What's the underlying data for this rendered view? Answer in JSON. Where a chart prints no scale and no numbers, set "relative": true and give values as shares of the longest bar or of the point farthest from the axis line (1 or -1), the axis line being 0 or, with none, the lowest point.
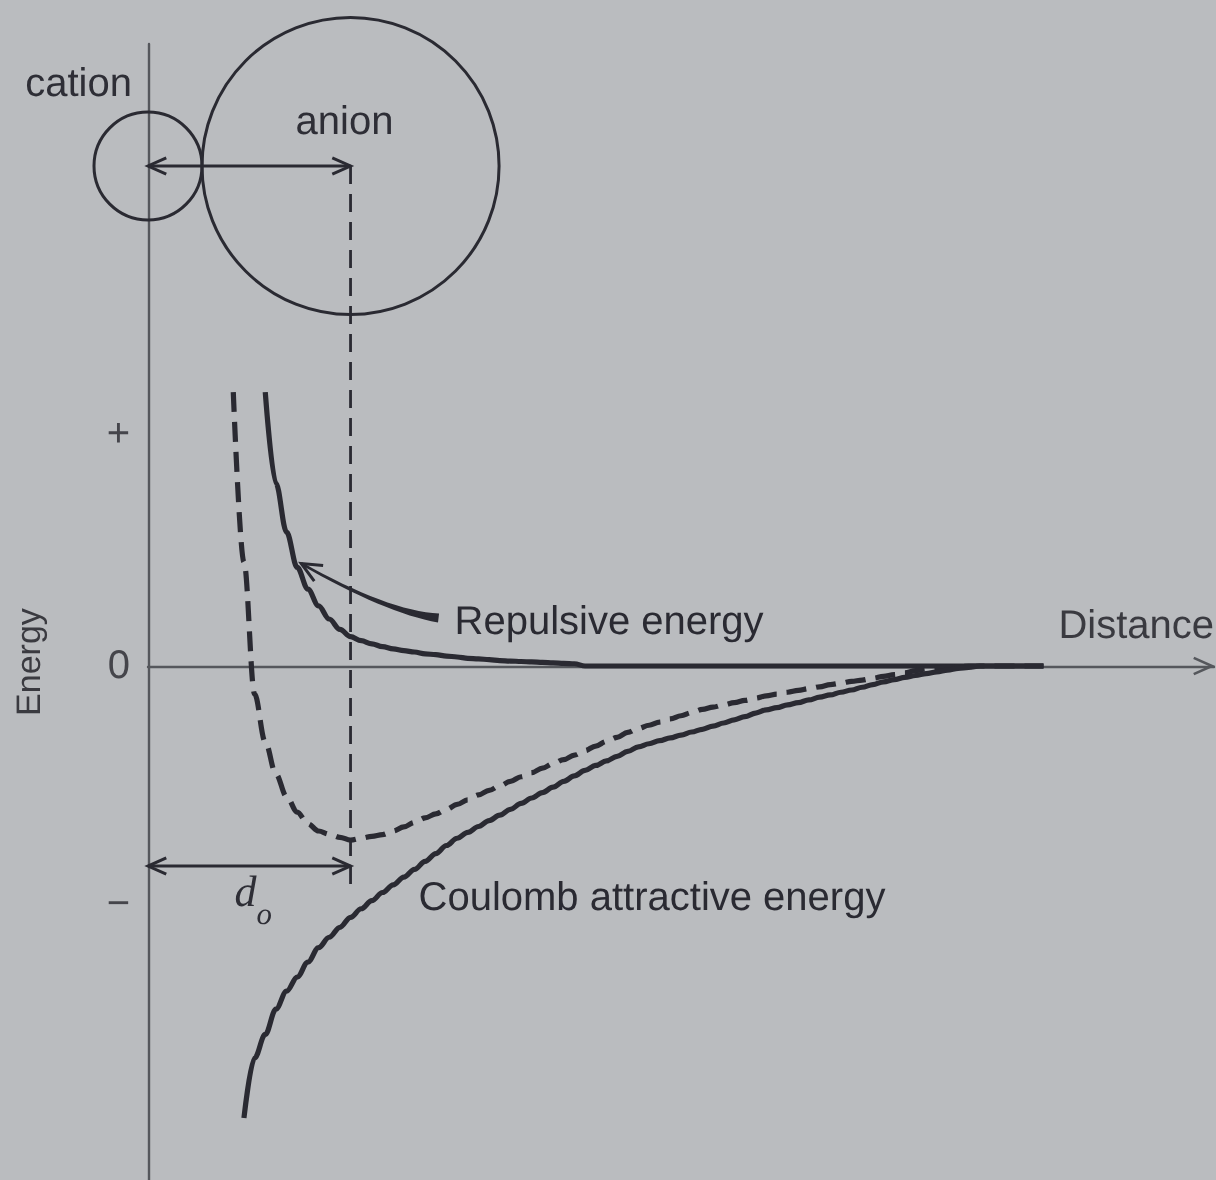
{
  "chart_data": {
    "type": "line",
    "xlabel": "Distance",
    "ylabel": "Energy",
    "relative": true,
    "marker": "none",
    "categories": [
      null,
      null,
      null,
      null,
      null,
      null,
      null,
      null,
      null,
      null,
      null,
      null,
      null,
      null,
      null,
      null,
      null,
      null,
      null,
      null,
      null,
      null,
      null,
      null,
      null,
      null,
      null,
      null,
      null,
      null,
      null,
      null,
      null,
      null,
      null,
      null,
      null,
      null,
      null,
      null,
      null,
      null,
      null,
      null,
      null,
      null,
      null,
      null,
      null,
      null,
      null,
      null,
      null,
      null,
      null,
      null,
      null,
      null,
      null,
      null,
      null,
      null,
      null,
      null,
      null,
      null,
      null,
      null,
      null,
      null,
      null,
      null,
      null,
      null,
      null,
      null,
      null,
      null,
      null,
      null,
      null,
      null,
      null,
      null,
      null,
      null,
      null,
      null,
      null,
      null,
      null,
      null,
      null,
      null,
      null,
      null,
      null,
      null,
      null,
      null,
      null
    ],
    "series": [
      {
        "name": "Repulsive energy",
        "color": "#2a2a32",
        "line_style": "solid",
        "values": [
          null,
          null,
          null,
          null,
          null,
          null,
          null,
          null,
          null,
          null,
          null,
          0.606,
          0.404,
          0.296,
          0.218,
          0.17,
          0.133,
          0.104,
          0.081,
          0.065,
          0.056,
          0.049,
          0.043,
          0.038,
          0.034,
          0.031,
          0.027,
          0.025,
          0.022,
          0.02,
          0.017,
          0.016,
          0.014,
          0.012,
          0.011,
          0.01,
          0.009,
          0.008,
          0.007,
          0.006,
          0.005,
          0,
          0,
          0,
          0,
          0,
          0,
          0,
          0,
          0,
          0,
          0,
          0,
          0,
          0,
          0,
          0,
          0,
          0,
          0,
          0,
          0,
          0,
          0,
          0,
          0,
          0,
          0,
          0,
          0,
          0,
          0,
          0,
          0,
          0,
          0,
          0,
          0,
          0,
          0,
          0,
          0,
          0,
          0,
          0,
          null,
          null,
          null,
          null,
          null,
          null,
          null,
          null,
          null,
          null,
          null,
          null,
          null,
          null,
          null,
          null
        ]
      },
      {
        "color": "#2a2a32",
        "line_style": "dashed",
        "values": [
          null,
          null,
          null,
          null,
          null,
          null,
          null,
          null,
          0.606,
          0.23,
          -0.062,
          -0.168,
          -0.239,
          -0.289,
          -0.323,
          -0.349,
          -0.365,
          -0.372,
          -0.379,
          -0.385,
          -0.381,
          -0.377,
          -0.373,
          -0.365,
          -0.356,
          -0.346,
          -0.336,
          -0.327,
          -0.317,
          -0.306,
          -0.296,
          -0.285,
          -0.275,
          -0.265,
          -0.255,
          -0.245,
          -0.236,
          -0.226,
          -0.216,
          -0.207,
          -0.197,
          -0.187,
          -0.177,
          -0.167,
          -0.158,
          -0.147,
          -0.138,
          -0.131,
          -0.124,
          -0.117,
          -0.11,
          -0.103,
          -0.096,
          -0.091,
          -0.086,
          -0.081,
          -0.076,
          -0.071,
          -0.066,
          -0.062,
          -0.058,
          -0.054,
          -0.05,
          -0.046,
          -0.041,
          -0.038,
          -0.034,
          -0.031,
          -0.027,
          -0.023,
          -0.019,
          -0.015,
          -0.01,
          -0.006,
          -0.004,
          -0.003,
          -0.002,
          0,
          0,
          0,
          0,
          0,
          0,
          0,
          0,
          null,
          null,
          null,
          null,
          null,
          null,
          null,
          null,
          null,
          null,
          null,
          null,
          null,
          null,
          null,
          null
        ]
      },
      {
        "name": "Coulomb attractive energy",
        "color": "#2a2a32",
        "line_style": "solid",
        "values": [
          null,
          null,
          null,
          null,
          null,
          null,
          null,
          null,
          null,
          -1,
          -0.867,
          -0.815,
          -0.759,
          -0.719,
          -0.688,
          -0.655,
          -0.623,
          -0.6,
          -0.578,
          -0.556,
          -0.537,
          -0.519,
          -0.501,
          -0.484,
          -0.467,
          -0.45,
          -0.432,
          -0.415,
          -0.397,
          -0.381,
          -0.368,
          -0.355,
          -0.342,
          -0.33,
          -0.317,
          -0.304,
          -0.292,
          -0.28,
          -0.268,
          -0.255,
          -0.243,
          -0.231,
          -0.22,
          -0.21,
          -0.2,
          -0.189,
          -0.179,
          -0.172,
          -0.165,
          -0.159,
          -0.153,
          -0.146,
          -0.14,
          -0.133,
          -0.126,
          -0.119,
          -0.112,
          -0.104,
          -0.097,
          -0.092,
          -0.086,
          -0.081,
          -0.075,
          -0.069,
          -0.064,
          -0.058,
          -0.053,
          -0.047,
          -0.041,
          -0.035,
          -0.03,
          -0.025,
          -0.021,
          -0.017,
          -0.013,
          -0.009,
          -0.005,
          -0.003,
          0,
          0,
          0,
          0,
          0,
          0,
          0,
          null,
          null,
          null,
          null,
          null,
          null,
          null,
          null,
          null,
          null,
          null,
          null,
          null,
          null,
          null,
          null
        ]
      }
    ],
    "annotations": [
      "cation",
      "anion",
      "d$_{o}$",
      "+",
      "0",
      "−"
    ]
  }
}
